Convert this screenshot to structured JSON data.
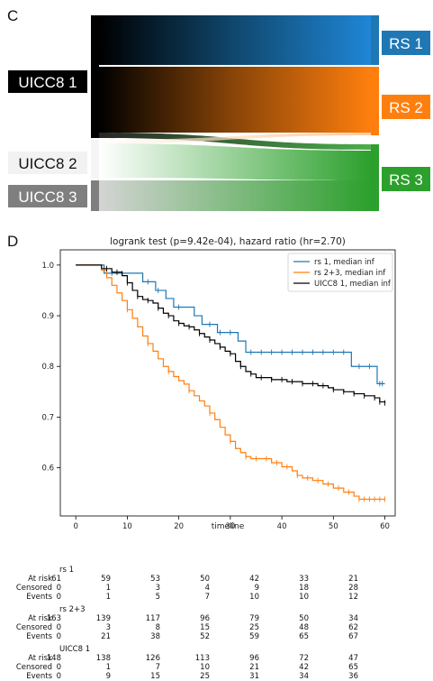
{
  "panels": {
    "c": "C",
    "d": "D"
  },
  "sankey": {
    "left_nodes": [
      {
        "label": "UICC8 1",
        "bg": "#000000",
        "fg": "#ffffff"
      },
      {
        "label": "UICC8 2",
        "bg": "#f2f2f2",
        "fg": "#111111"
      },
      {
        "label": "UICC8 3",
        "bg": "#7f7f7f",
        "fg": "#ffffff"
      }
    ],
    "right_nodes": [
      {
        "label": "RS 1",
        "bg": "#1f77b4",
        "fg": "#ffffff"
      },
      {
        "label": "RS 2",
        "bg": "#ff7f0e",
        "fg": "#ffffff"
      },
      {
        "label": "RS 3",
        "bg": "#2ca02c",
        "fg": "#ffffff"
      }
    ],
    "colors": {
      "rs1": "#1f77b4",
      "rs2": "#ff7f0e",
      "rs3": "#2ca02c"
    }
  },
  "chart_data": {
    "type": "line",
    "title": "logrank test (p=9.42e-04), hazard ratio (hr=2.70)",
    "xlabel": "timeline",
    "ylabel": "",
    "xlim": [
      -3,
      62
    ],
    "ylim": [
      0.505,
      1.03
    ],
    "xticks": [
      0,
      10,
      20,
      30,
      40,
      50,
      60
    ],
    "yticks": [
      0.6,
      0.7,
      0.8,
      0.9,
      1.0
    ],
    "ytick_labels": [
      "0.6",
      "0.7",
      "0.8",
      "0.9",
      "1.0"
    ],
    "legend_position": "top-right",
    "series": [
      {
        "name": "rs 1, median inf",
        "color": "#1f77b4",
        "points": [
          [
            0,
            1.0
          ],
          [
            5,
            1.0
          ],
          [
            5.5,
            0.984
          ],
          [
            12.5,
            0.984
          ],
          [
            13,
            0.967
          ],
          [
            15,
            0.967
          ],
          [
            15.5,
            0.95
          ],
          [
            17,
            0.95
          ],
          [
            17.5,
            0.934
          ],
          [
            18.5,
            0.934
          ],
          [
            19,
            0.917
          ],
          [
            22.5,
            0.917
          ],
          [
            23,
            0.9
          ],
          [
            24,
            0.9
          ],
          [
            24.5,
            0.883
          ],
          [
            27,
            0.883
          ],
          [
            27.5,
            0.867
          ],
          [
            31,
            0.867
          ],
          [
            31.5,
            0.85
          ],
          [
            32.5,
            0.85
          ],
          [
            33,
            0.828
          ],
          [
            53,
            0.828
          ],
          [
            53.5,
            0.8
          ],
          [
            58,
            0.8
          ],
          [
            58.5,
            0.766
          ],
          [
            60,
            0.766
          ]
        ],
        "censor_x": [
          7,
          9,
          14,
          16,
          20,
          26,
          28,
          30,
          34,
          36,
          38,
          40,
          42,
          44,
          46,
          48,
          50,
          52,
          55,
          57,
          59,
          59.5
        ]
      },
      {
        "name": "rs 2+3, median inf",
        "color": "#ff7f0e",
        "points": [
          [
            0,
            1.0
          ],
          [
            4,
            1.0
          ],
          [
            5,
            0.99
          ],
          [
            6,
            0.975
          ],
          [
            7,
            0.96
          ],
          [
            8,
            0.945
          ],
          [
            9,
            0.93
          ],
          [
            10,
            0.912
          ],
          [
            11,
            0.895
          ],
          [
            12,
            0.878
          ],
          [
            13,
            0.86
          ],
          [
            14,
            0.845
          ],
          [
            15,
            0.83
          ],
          [
            16,
            0.815
          ],
          [
            17,
            0.8
          ],
          [
            18,
            0.79
          ],
          [
            19,
            0.78
          ],
          [
            20,
            0.772
          ],
          [
            21,
            0.765
          ],
          [
            22,
            0.752
          ],
          [
            23,
            0.742
          ],
          [
            24,
            0.732
          ],
          [
            25,
            0.722
          ],
          [
            26,
            0.708
          ],
          [
            27,
            0.695
          ],
          [
            28,
            0.68
          ],
          [
            29,
            0.665
          ],
          [
            30,
            0.652
          ],
          [
            31,
            0.638
          ],
          [
            32,
            0.63
          ],
          [
            33,
            0.622
          ],
          [
            34,
            0.618
          ],
          [
            38,
            0.61
          ],
          [
            40,
            0.602
          ],
          [
            42,
            0.594
          ],
          [
            43,
            0.585
          ],
          [
            44,
            0.58
          ],
          [
            46,
            0.575
          ],
          [
            48,
            0.568
          ],
          [
            50,
            0.56
          ],
          [
            52,
            0.552
          ],
          [
            54,
            0.544
          ],
          [
            55,
            0.538
          ],
          [
            60,
            0.538
          ]
        ],
        "censor_x": [
          10,
          14,
          18,
          22,
          26,
          30,
          33,
          35,
          37,
          39,
          41,
          43,
          45,
          47,
          49,
          51,
          53,
          55,
          56,
          57,
          58,
          59,
          60
        ]
      },
      {
        "name": "UICC8 1, median inf",
        "color": "#000000",
        "points": [
          [
            0,
            1.0
          ],
          [
            4,
            1.0
          ],
          [
            5,
            0.993
          ],
          [
            7,
            0.986
          ],
          [
            9,
            0.979
          ],
          [
            10,
            0.965
          ],
          [
            11,
            0.95
          ],
          [
            12,
            0.938
          ],
          [
            13,
            0.932
          ],
          [
            14,
            0.93
          ],
          [
            15,
            0.925
          ],
          [
            16,
            0.915
          ],
          [
            17,
            0.905
          ],
          [
            18,
            0.9
          ],
          [
            19,
            0.89
          ],
          [
            20,
            0.885
          ],
          [
            21,
            0.88
          ],
          [
            22,
            0.878
          ],
          [
            23,
            0.872
          ],
          [
            24,
            0.865
          ],
          [
            25,
            0.858
          ],
          [
            26,
            0.852
          ],
          [
            27,
            0.845
          ],
          [
            28,
            0.838
          ],
          [
            29,
            0.83
          ],
          [
            30,
            0.825
          ],
          [
            31,
            0.81
          ],
          [
            32,
            0.8
          ],
          [
            33,
            0.79
          ],
          [
            34,
            0.785
          ],
          [
            35,
            0.778
          ],
          [
            38,
            0.774
          ],
          [
            41,
            0.77
          ],
          [
            44,
            0.766
          ],
          [
            47,
            0.762
          ],
          [
            49,
            0.758
          ],
          [
            50,
            0.754
          ],
          [
            52,
            0.75
          ],
          [
            54,
            0.746
          ],
          [
            56,
            0.742
          ],
          [
            58,
            0.738
          ],
          [
            59,
            0.73
          ],
          [
            60,
            0.728
          ]
        ],
        "censor_x": [
          6,
          8,
          10,
          12,
          14,
          16,
          18,
          20,
          22,
          24,
          26,
          28,
          30,
          32,
          34,
          36,
          38,
          40,
          42,
          44,
          46,
          48,
          50,
          52,
          54,
          56,
          58,
          59,
          60
        ]
      }
    ]
  },
  "risk_table": {
    "times": [
      "0",
      "10",
      "20",
      "30",
      "40",
      "50",
      "60"
    ],
    "groups": [
      {
        "title": "rs 1",
        "rows": [
          {
            "label": "At risk",
            "values": [
              "61",
              "59",
              "53",
              "50",
              "42",
              "33",
              "21"
            ]
          },
          {
            "label": "Censored",
            "values": [
              "0",
              "1",
              "3",
              "4",
              "9",
              "18",
              "28"
            ]
          },
          {
            "label": "Events",
            "values": [
              "0",
              "1",
              "5",
              "7",
              "10",
              "10",
              "12"
            ]
          }
        ]
      },
      {
        "title": "rs 2+3",
        "rows": [
          {
            "label": "At risk",
            "values": [
              "163",
              "139",
              "117",
              "96",
              "79",
              "50",
              "34"
            ]
          },
          {
            "label": "Censored",
            "values": [
              "0",
              "3",
              "8",
              "15",
              "25",
              "48",
              "62"
            ]
          },
          {
            "label": "Events",
            "values": [
              "0",
              "21",
              "38",
              "52",
              "59",
              "65",
              "67"
            ]
          }
        ]
      },
      {
        "title": "UICC8 1",
        "rows": [
          {
            "label": "At risk",
            "values": [
              "148",
              "138",
              "126",
              "113",
              "96",
              "72",
              "47"
            ]
          },
          {
            "label": "Censored",
            "values": [
              "0",
              "1",
              "7",
              "10",
              "21",
              "42",
              "65"
            ]
          },
          {
            "label": "Events",
            "values": [
              "0",
              "9",
              "15",
              "25",
              "31",
              "34",
              "36"
            ]
          }
        ]
      }
    ]
  }
}
